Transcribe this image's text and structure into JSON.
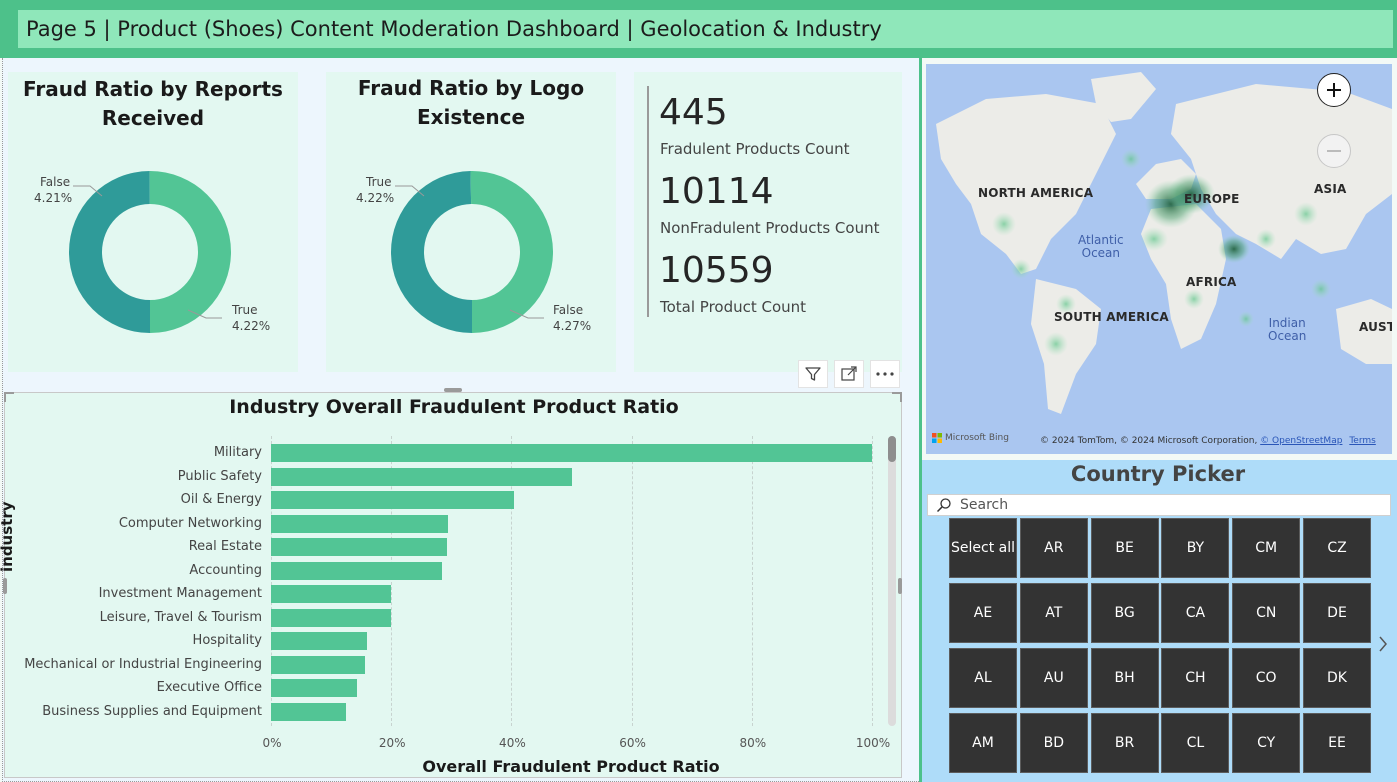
{
  "header": {
    "title": "Page 5 | Product (Shoes) Content Moderation Dashboard | Geolocation & Industry"
  },
  "donut_reports": {
    "title_line1": "Fraud Ratio by Reports",
    "title_line2": "Received",
    "slices": [
      {
        "name": "False",
        "value_label": "4.21%",
        "value": 4.21
      },
      {
        "name": "True",
        "value_label": "4.22%",
        "value": 4.22
      }
    ]
  },
  "donut_logo": {
    "title_line1": "Fraud Ratio by Logo",
    "title_line2": "Existence",
    "slices": [
      {
        "name": "True",
        "value_label": "4.22%",
        "value": 4.22
      },
      {
        "name": "False",
        "value_label": "4.27%",
        "value": 4.27
      }
    ]
  },
  "kpis": [
    {
      "value": "445",
      "label": "Fradulent Products Count"
    },
    {
      "value": "10114",
      "label": "NonFradulent Products Count"
    },
    {
      "value": "10559",
      "label": "Total Product Count"
    }
  ],
  "colors": {
    "donut_a": "#2f9b99",
    "donut_b": "#52c595",
    "bar": "#52c595",
    "header": "#4dc18a",
    "header_inner": "#8fe7ba",
    "tile": "#333333"
  },
  "chart_data": {
    "type": "bar",
    "orientation": "horizontal",
    "title": "Industry Overall Fraudulent Product Ratio",
    "xlabel": "Overall Fraudulent Product Ratio",
    "ylabel": "industry",
    "xlim": [
      0,
      100
    ],
    "x_ticks": [
      "0%",
      "20%",
      "40%",
      "60%",
      "80%",
      "100%"
    ],
    "categories": [
      "Military",
      "Public Safety",
      "Oil & Energy",
      "Computer Networking",
      "Real Estate",
      "Accounting",
      "Investment Management",
      "Leisure, Travel & Tourism",
      "Hospitality",
      "Mechanical or Industrial Engineering",
      "Executive Office",
      "Business Supplies and Equipment"
    ],
    "values": [
      100,
      50,
      40.5,
      29.5,
      29.3,
      28.5,
      20,
      20,
      16,
      15.7,
      14.3,
      12.5
    ]
  },
  "map": {
    "labels": [
      "NORTH AMERICA",
      "EUROPE",
      "ASIA",
      "AFRICA",
      "SOUTH AMERICA",
      "AUST"
    ],
    "ocean_atlantic_1": "Atlantic",
    "ocean_atlantic_2": "Ocean",
    "ocean_indian_1": "Indian",
    "ocean_indian_2": "Ocean",
    "zoom_in_icon": "plus-icon",
    "zoom_out_icon": "minus-icon",
    "provider": "Microsoft Bing",
    "attribution": "© 2024 TomTom, © 2024 Microsoft Corporation,",
    "osm_link": "© OpenStreetMap",
    "terms_link": "Terms"
  },
  "picker": {
    "title": "Country Picker",
    "search_placeholder": "Search",
    "tiles": [
      [
        "Select all",
        "AR",
        "BE",
        "BY",
        "CM",
        "CZ"
      ],
      [
        "AE",
        "AT",
        "BG",
        "CA",
        "CN",
        "DE"
      ],
      [
        "AL",
        "AU",
        "BH",
        "CH",
        "CO",
        "DK"
      ],
      [
        "AM",
        "BD",
        "BR",
        "CL",
        "CY",
        "EE"
      ]
    ],
    "next_icon": "chevron-right-icon"
  }
}
